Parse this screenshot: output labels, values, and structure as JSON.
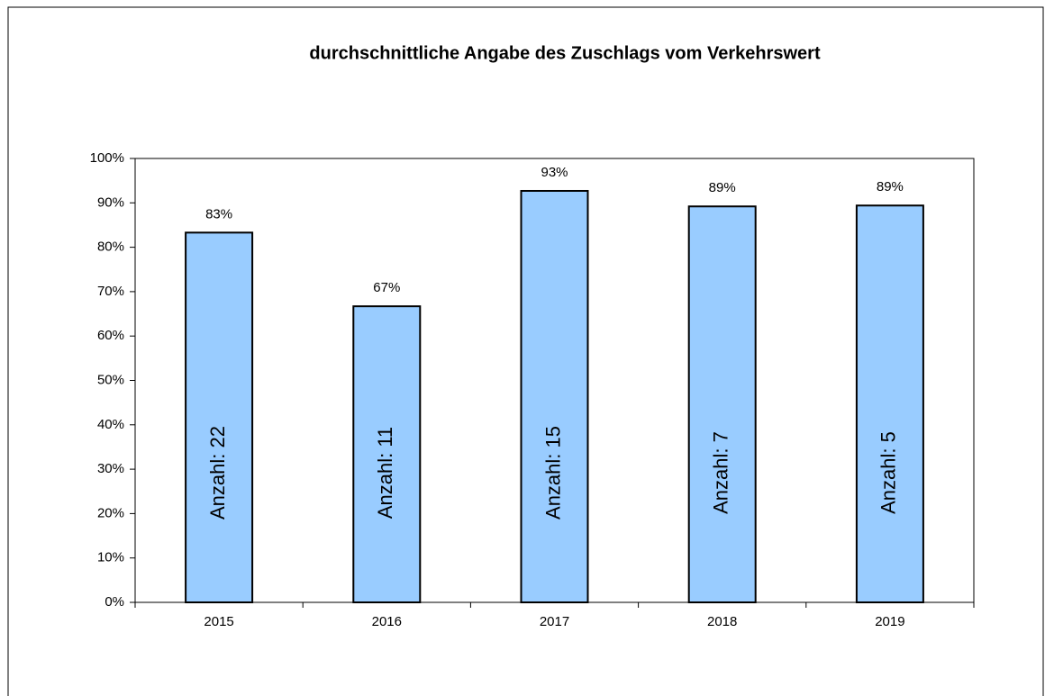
{
  "chart_data": {
    "type": "bar",
    "title": "durchschnittliche Angabe des Zuschlags vom Verkehrswert",
    "categories": [
      "2015",
      "2016",
      "2017",
      "2018",
      "2019"
    ],
    "values": [
      83.3,
      66.7,
      92.7,
      89.2,
      89.4
    ],
    "value_labels": [
      "83%",
      "67%",
      "93%",
      "89%",
      "89%"
    ],
    "annotations": [
      "Anzahl: 22",
      "Anzahl: 11",
      "Anzahl: 15",
      "Anzahl: 7",
      "Anzahl: 5"
    ],
    "color": "#99ccff",
    "ylim": [
      0,
      100
    ],
    "yticks": [
      {
        "value": 0,
        "label": "0%"
      },
      {
        "value": 10,
        "label": "10%"
      },
      {
        "value": 20,
        "label": "20%"
      },
      {
        "value": 30,
        "label": "30%"
      },
      {
        "value": 40,
        "label": "40%"
      },
      {
        "value": 50,
        "label": "50%"
      },
      {
        "value": 60,
        "label": "60%"
      },
      {
        "value": 70,
        "label": "70%"
      },
      {
        "value": 80,
        "label": "80%"
      },
      {
        "value": 90,
        "label": "90%"
      },
      {
        "value": 100,
        "label": "100%"
      }
    ],
    "grid": false
  }
}
